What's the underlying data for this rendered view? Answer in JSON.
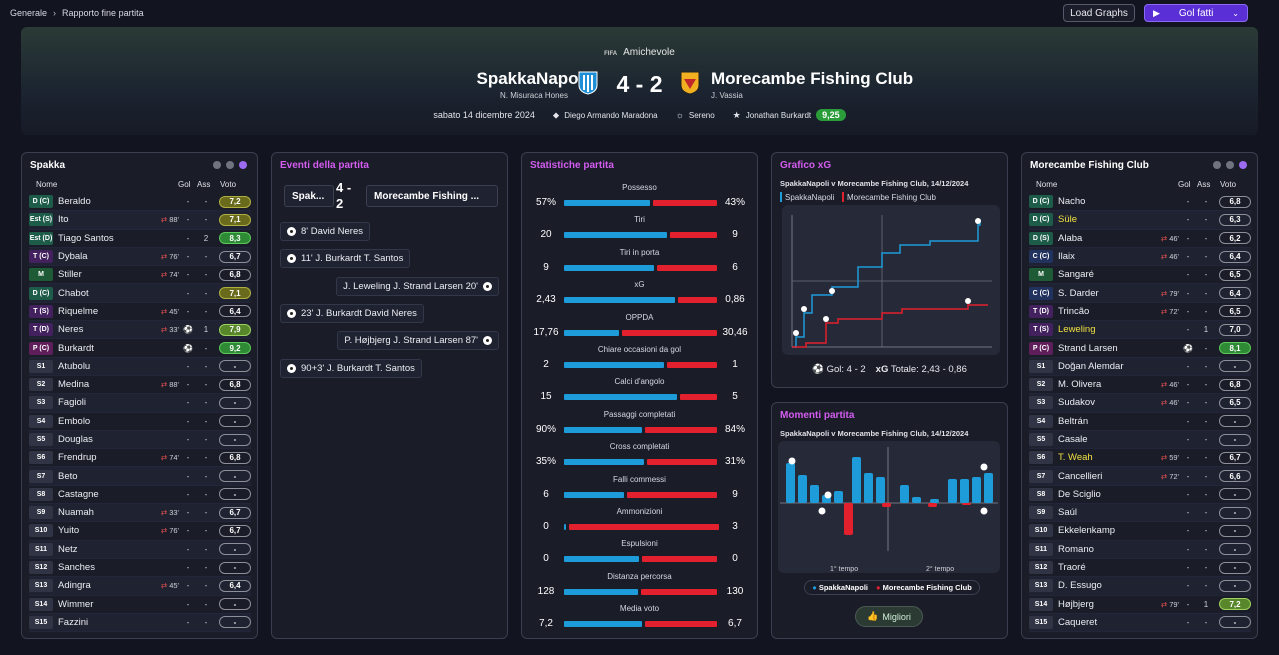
{
  "breadcrumb": [
    "Generale",
    "Rapporto fine partita"
  ],
  "toolbar": {
    "load_graphs": "Load Graphs",
    "gol_fatti": "Gol fatti"
  },
  "match": {
    "competition_logo": "FIFA",
    "competition": "Amichevole",
    "home": "SpakkaNapoli",
    "home_coach": "N. Misuraca Hones",
    "away": "Morecambe Fishing Club",
    "away_coach": "J. Vassia",
    "score": "4 - 2",
    "date": "sabato 14 dicembre 2024",
    "stadium": "Diego Armando Maradona",
    "weather": "Sereno",
    "pom": "Jonathan Burkardt",
    "pom_rating": "9,25"
  },
  "home_panel": {
    "title": "Spakka",
    "headers": {
      "name": "Nome",
      "gol": "Gol",
      "ass": "Ass",
      "voto": "Voto"
    },
    "players": [
      {
        "pos": "D (C)",
        "name": "Beraldo",
        "sub": "",
        "gol": "-",
        "ass": "-",
        "vote": "7,2",
        "style": "olive"
      },
      {
        "pos": "Est (S)",
        "name": "Ito",
        "sub": "88'",
        "gol": "-",
        "ass": "-",
        "vote": "7,1",
        "style": "olive"
      },
      {
        "pos": "Est (D)",
        "name": "Tiago Santos",
        "sub": "",
        "gol": "-",
        "ass": "2",
        "vote": "8,3",
        "style": "green"
      },
      {
        "pos": "T (C)",
        "name": "Dybala",
        "sub": "76'",
        "gol": "-",
        "ass": "-",
        "vote": "6,7",
        "style": ""
      },
      {
        "pos": "M",
        "name": "Stiller",
        "sub": "74'",
        "gol": "-",
        "ass": "-",
        "vote": "6,8",
        "style": ""
      },
      {
        "pos": "D (C)",
        "name": "Chabot",
        "sub": "",
        "gol": "-",
        "ass": "-",
        "vote": "7,1",
        "style": "olive"
      },
      {
        "pos": "T (S)",
        "name": "Riquelme",
        "sub": "45'",
        "gol": "-",
        "ass": "-",
        "vote": "6,4",
        "style": ""
      },
      {
        "pos": "T (D)",
        "name": "Neres",
        "sub": "33'",
        "gol": "ball",
        "ass": "1",
        "vote": "7,9",
        "style": "lime"
      },
      {
        "pos": "P (C)",
        "name": "Burkardt",
        "sub": "",
        "gol": "ball",
        "ass": "-",
        "vote": "9,2",
        "style": "green"
      },
      {
        "pos": "S1",
        "name": "Atubolu",
        "sub": "",
        "gol": "-",
        "ass": "-",
        "vote": "-",
        "style": ""
      },
      {
        "pos": "S2",
        "name": "Medina",
        "sub": "88'",
        "gol": "-",
        "ass": "-",
        "vote": "6,8",
        "style": ""
      },
      {
        "pos": "S3",
        "name": "Fagioli",
        "sub": "",
        "gol": "-",
        "ass": "-",
        "vote": "-",
        "style": ""
      },
      {
        "pos": "S4",
        "name": "Embolo",
        "sub": "",
        "gol": "-",
        "ass": "-",
        "vote": "-",
        "style": ""
      },
      {
        "pos": "S5",
        "name": "Douglas",
        "sub": "",
        "gol": "-",
        "ass": "-",
        "vote": "-",
        "style": ""
      },
      {
        "pos": "S6",
        "name": "Frendrup",
        "sub": "74'",
        "gol": "-",
        "ass": "-",
        "vote": "6,8",
        "style": ""
      },
      {
        "pos": "S7",
        "name": "Beto",
        "sub": "",
        "gol": "-",
        "ass": "-",
        "vote": "-",
        "style": ""
      },
      {
        "pos": "S8",
        "name": "Castagne",
        "sub": "",
        "gol": "-",
        "ass": "-",
        "vote": "-",
        "style": ""
      },
      {
        "pos": "S9",
        "name": "Nuamah",
        "sub": "33'",
        "gol": "-",
        "ass": "-",
        "vote": "6,7",
        "style": ""
      },
      {
        "pos": "S10",
        "name": "Yuito",
        "sub": "76'",
        "gol": "-",
        "ass": "-",
        "vote": "6,7",
        "style": ""
      },
      {
        "pos": "S11",
        "name": "Netz",
        "sub": "",
        "gol": "-",
        "ass": "-",
        "vote": "-",
        "style": ""
      },
      {
        "pos": "S12",
        "name": "Sanches",
        "sub": "",
        "gol": "-",
        "ass": "-",
        "vote": "-",
        "style": ""
      },
      {
        "pos": "S13",
        "name": "Adingra",
        "sub": "45'",
        "gol": "-",
        "ass": "-",
        "vote": "6,4",
        "style": ""
      },
      {
        "pos": "S14",
        "name": "Wimmer",
        "sub": "",
        "gol": "-",
        "ass": "-",
        "vote": "-",
        "style": ""
      },
      {
        "pos": "S15",
        "name": "Fazzini",
        "sub": "",
        "gol": "-",
        "ass": "-",
        "vote": "-",
        "style": ""
      }
    ]
  },
  "away_panel": {
    "title": "Morecambe Fishing Club",
    "headers": {
      "name": "Nome",
      "gol": "Gol",
      "ass": "Ass",
      "voto": "Voto"
    },
    "players": [
      {
        "pos": "D (C)",
        "name": "Nacho",
        "sub": "",
        "gol": "-",
        "ass": "-",
        "vote": "6,8",
        "style": ""
      },
      {
        "pos": "D (C)",
        "name": "Süle",
        "sub": "",
        "gol": "-",
        "ass": "-",
        "vote": "6,3",
        "style": "",
        "hl": true
      },
      {
        "pos": "D (S)",
        "name": "Alaba",
        "sub": "46'",
        "gol": "-",
        "ass": "-",
        "vote": "6,2",
        "style": ""
      },
      {
        "pos": "C (C)",
        "name": "Ilaix",
        "sub": "46'",
        "gol": "-",
        "ass": "-",
        "vote": "6,4",
        "style": ""
      },
      {
        "pos": "M",
        "name": "Sangaré",
        "sub": "",
        "gol": "-",
        "ass": "-",
        "vote": "6,5",
        "style": ""
      },
      {
        "pos": "C (C)",
        "name": "S. Darder",
        "sub": "79'",
        "gol": "-",
        "ass": "-",
        "vote": "6,4",
        "style": ""
      },
      {
        "pos": "T (D)",
        "name": "Trincão",
        "sub": "72'",
        "gol": "-",
        "ass": "-",
        "vote": "6,5",
        "style": ""
      },
      {
        "pos": "T (S)",
        "name": "Leweling",
        "sub": "",
        "gol": "-",
        "ass": "1",
        "vote": "7,0",
        "style": "",
        "hl": true
      },
      {
        "pos": "P (C)",
        "name": "Strand Larsen",
        "sub": "",
        "gol": "ball",
        "ass": "-",
        "vote": "8,1",
        "style": "green"
      },
      {
        "pos": "S1",
        "name": "Doğan Alemdar",
        "sub": "",
        "gol": "-",
        "ass": "-",
        "vote": "-",
        "style": ""
      },
      {
        "pos": "S2",
        "name": "M. Olivera",
        "sub": "46'",
        "gol": "-",
        "ass": "-",
        "vote": "6,8",
        "style": ""
      },
      {
        "pos": "S3",
        "name": "Sudakov",
        "sub": "46'",
        "gol": "-",
        "ass": "-",
        "vote": "6,5",
        "style": ""
      },
      {
        "pos": "S4",
        "name": "Beltrán",
        "sub": "",
        "gol": "-",
        "ass": "-",
        "vote": "-",
        "style": ""
      },
      {
        "pos": "S5",
        "name": "Casale",
        "sub": "",
        "gol": "-",
        "ass": "-",
        "vote": "-",
        "style": ""
      },
      {
        "pos": "S6",
        "name": "T. Weah",
        "sub": "59'",
        "gol": "-",
        "ass": "-",
        "vote": "6,7",
        "style": "",
        "hl": true
      },
      {
        "pos": "S7",
        "name": "Cancellieri",
        "sub": "72'",
        "gol": "-",
        "ass": "-",
        "vote": "6,6",
        "style": ""
      },
      {
        "pos": "S8",
        "name": "De Sciglio",
        "sub": "",
        "gol": "-",
        "ass": "-",
        "vote": "-",
        "style": ""
      },
      {
        "pos": "S9",
        "name": "Saúl",
        "sub": "",
        "gol": "-",
        "ass": "-",
        "vote": "-",
        "style": ""
      },
      {
        "pos": "S10",
        "name": "Ekkelenkamp",
        "sub": "",
        "gol": "-",
        "ass": "-",
        "vote": "-",
        "style": ""
      },
      {
        "pos": "S11",
        "name": "Romano",
        "sub": "",
        "gol": "-",
        "ass": "-",
        "vote": "-",
        "style": ""
      },
      {
        "pos": "S12",
        "name": "Traoré",
        "sub": "",
        "gol": "-",
        "ass": "-",
        "vote": "-",
        "style": ""
      },
      {
        "pos": "S13",
        "name": "D. Essugo",
        "sub": "",
        "gol": "-",
        "ass": "-",
        "vote": "-",
        "style": ""
      },
      {
        "pos": "S14",
        "name": "Højbjerg",
        "sub": "79'",
        "gol": "-",
        "ass": "1",
        "vote": "7,2",
        "style": "lime"
      },
      {
        "pos": "S15",
        "name": "Caqueret",
        "sub": "",
        "gol": "-",
        "ass": "-",
        "vote": "-",
        "style": ""
      }
    ]
  },
  "events": {
    "title": "Eventi della partita",
    "home_short": "Spak...",
    "score_line1": "4 -",
    "score_line2": "2",
    "away_short": "Morecambe Fishing ...",
    "items": [
      {
        "side": "home",
        "text": "8' David Neres"
      },
      {
        "side": "home",
        "text": "11' J. Burkardt T. Santos"
      },
      {
        "side": "away",
        "text": "J. Leweling J. Strand Larsen 20'"
      },
      {
        "side": "home",
        "text": "23' J. Burkardt David Neres"
      },
      {
        "side": "away",
        "text": "P. Højbjerg J. Strand Larsen 87'"
      },
      {
        "side": "home",
        "text": "90+3' J. Burkardt T. Santos"
      }
    ]
  },
  "stats": {
    "title": "Statistiche partita",
    "items": [
      {
        "label": "Possesso",
        "home": "57%",
        "away": "43%",
        "h": 57,
        "a": 43
      },
      {
        "label": "Tiri",
        "home": "20",
        "away": "9",
        "h": 20,
        "a": 9
      },
      {
        "label": "Tiri in porta",
        "home": "9",
        "away": "6",
        "h": 9,
        "a": 6
      },
      {
        "label": "xG",
        "home": "2,43",
        "away": "0,86",
        "h": 2.43,
        "a": 0.86
      },
      {
        "label": "OPPDA",
        "home": "17,76",
        "away": "30,46",
        "h": 17.76,
        "a": 30.46
      },
      {
        "label": "Chiare occasioni da gol",
        "home": "2",
        "away": "1",
        "h": 2,
        "a": 1
      },
      {
        "label": "Calci d'angolo",
        "home": "15",
        "away": "5",
        "h": 15,
        "a": 5
      },
      {
        "label": "Passaggi completati",
        "home": "90%",
        "away": "84%",
        "h": 90,
        "a": 84
      },
      {
        "label": "Cross completati",
        "home": "35%",
        "away": "31%",
        "h": 35,
        "a": 31
      },
      {
        "label": "Falli commessi",
        "home": "6",
        "away": "9",
        "h": 6,
        "a": 9
      },
      {
        "label": "Ammonizioni",
        "home": "0",
        "away": "3",
        "h": 0,
        "a": 3
      },
      {
        "label": "Espulsioni",
        "home": "0",
        "away": "0",
        "h": 0,
        "a": 0
      },
      {
        "label": "Distanza percorsa",
        "home": "128",
        "away": "130",
        "h": 128,
        "a": 130
      },
      {
        "label": "Media voto",
        "home": "7,2",
        "away": "6,7",
        "h": 7.2,
        "a": 6.7
      }
    ]
  },
  "xg": {
    "title": "Grafico xG",
    "subtitle": "SpakkaNapoli v Morecambe Fishing Club, 14/12/2024",
    "legend_home": "SpakkaNapoli",
    "legend_away": "Morecambe Fishing Club",
    "footer_goals": "Gol: 4 - 2",
    "footer_xg_label": "xG",
    "footer_xg_value": "Totale: 2,43 - 0,86"
  },
  "momenti": {
    "title": "Momenti partita",
    "subtitle": "SpakkaNapoli v Morecambe Fishing Club, 14/12/2024",
    "label_1t": "1° tempo",
    "label_2t": "2° tempo",
    "legend_home": "SpakkaNapoli",
    "legend_away": "Morecambe Fishing Club",
    "migliori": "Migliori"
  },
  "colors": {
    "home": "#1e9bd9",
    "away": "#e3202e",
    "accent": "#d45df0",
    "button": "#5b2fd6"
  }
}
